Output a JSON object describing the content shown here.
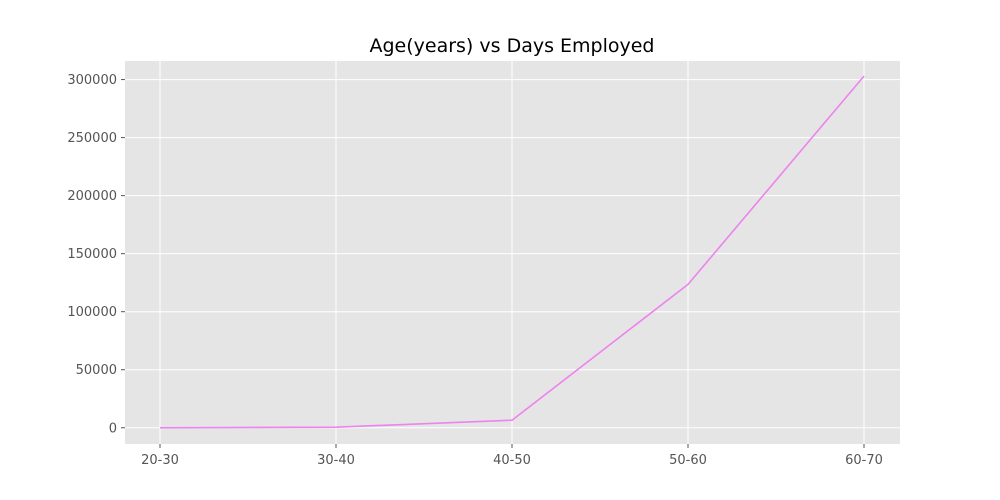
{
  "chart_data": {
    "type": "line",
    "title": "Age(years) vs Days Employed",
    "xlabel": "",
    "ylabel": "",
    "categories": [
      "20-30",
      "30-40",
      "40-50",
      "50-60",
      "60-70"
    ],
    "series": [
      {
        "values": [
          0,
          500,
          6500,
          123500,
          303000
        ],
        "color": "#ee82ee"
      }
    ],
    "ylim": [
      -14000,
      316000
    ],
    "yticks": [
      0,
      50000,
      100000,
      150000,
      200000,
      250000,
      300000
    ],
    "grid": true,
    "legend": "none",
    "colors": {
      "background": "#e5e5e5",
      "grid": "#ffffff",
      "line": "#ee82ee",
      "tick_text": "#555555"
    }
  }
}
